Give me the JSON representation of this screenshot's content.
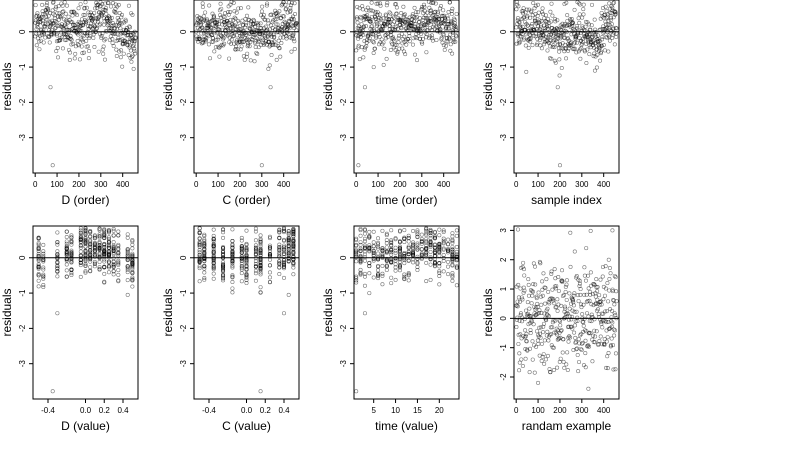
{
  "chart_data": [
    {
      "type": "scatter",
      "title": "",
      "xlabel": "D (order)",
      "ylabel": "residuals",
      "x_ticks": [
        0,
        100,
        200,
        300,
        400
      ],
      "y_ticks": [
        0,
        -1,
        -2,
        -3
      ],
      "xlim": [
        -10,
        470
      ],
      "ylim": [
        -4.0,
        0.9
      ],
      "reference_line": 0,
      "x_kind": "index",
      "n_points": 450,
      "spread": 0.35,
      "trend": [
        [
          0,
          0.1
        ],
        [
          100,
          0.25
        ],
        [
          200,
          0.05
        ],
        [
          260,
          0.2
        ],
        [
          300,
          0.35
        ],
        [
          350,
          0.25
        ],
        [
          400,
          -0.1
        ],
        [
          460,
          -0.35
        ]
      ],
      "outliers": [
        [
          80,
          -3.78
        ],
        [
          70,
          -1.57
        ],
        [
          450,
          -1.05
        ],
        [
          440,
          -0.85
        ]
      ]
    },
    {
      "type": "scatter",
      "title": "",
      "xlabel": "C (order)",
      "ylabel": "residuals",
      "x_ticks": [
        0,
        100,
        200,
        300,
        400
      ],
      "y_ticks": [
        0,
        -1,
        -2,
        -3
      ],
      "xlim": [
        -10,
        470
      ],
      "ylim": [
        -4.0,
        0.9
      ],
      "reference_line": 0,
      "x_kind": "index",
      "n_points": 450,
      "spread": 0.35,
      "trend": [
        [
          0,
          0.15
        ],
        [
          100,
          0.05
        ],
        [
          200,
          0.0
        ],
        [
          300,
          -0.1
        ],
        [
          400,
          0.2
        ],
        [
          460,
          0.25
        ]
      ],
      "outliers": [
        [
          300,
          -3.78
        ],
        [
          340,
          -1.57
        ],
        [
          330,
          -1.05
        ]
      ]
    },
    {
      "type": "scatter",
      "title": "",
      "xlabel": "time (order)",
      "ylabel": "residuals",
      "x_ticks": [
        0,
        100,
        200,
        300,
        400
      ],
      "y_ticks": [
        0,
        -1,
        -2,
        -3
      ],
      "xlim": [
        -10,
        470
      ],
      "ylim": [
        -4.0,
        0.9
      ],
      "reference_line": 0,
      "x_kind": "index",
      "n_points": 450,
      "spread": 0.35,
      "trend": [
        [
          0,
          -0.05
        ],
        [
          50,
          0.2
        ],
        [
          150,
          0.1
        ],
        [
          250,
          0.2
        ],
        [
          350,
          0.3
        ],
        [
          460,
          0.1
        ]
      ],
      "outliers": [
        [
          10,
          -3.78
        ],
        [
          40,
          -1.57
        ],
        [
          80,
          -1.0
        ]
      ]
    },
    {
      "type": "scatter",
      "title": "",
      "xlabel": "sample index",
      "ylabel": "residuals",
      "x_ticks": [
        0,
        100,
        200,
        300,
        400
      ],
      "y_ticks": [
        0,
        -1,
        -2,
        -3
      ],
      "xlim": [
        -10,
        470
      ],
      "ylim": [
        -4.0,
        0.9
      ],
      "reference_line": 0,
      "x_kind": "index",
      "n_points": 450,
      "spread": 0.35,
      "trend": [
        [
          0,
          0.2
        ],
        [
          100,
          0.05
        ],
        [
          200,
          -0.15
        ],
        [
          300,
          0.0
        ],
        [
          370,
          -0.3
        ],
        [
          420,
          0.35
        ],
        [
          460,
          0.4
        ]
      ],
      "outliers": [
        [
          200,
          -3.78
        ],
        [
          190,
          -1.57
        ],
        [
          360,
          -1.1
        ]
      ]
    },
    {
      "type": "scatter",
      "title": "",
      "xlabel": "D (value)",
      "ylabel": "residuals",
      "x_ticks": [
        -0.4,
        0.0,
        0.2,
        0.4
      ],
      "y_ticks": [
        0,
        -1,
        -2,
        -3
      ],
      "xlim": [
        -0.56,
        0.56
      ],
      "ylim": [
        -4.0,
        0.9
      ],
      "reference_line": 0,
      "x_kind": "levels",
      "x_levels": [
        -0.5,
        -0.45,
        -0.3,
        -0.2,
        -0.15,
        -0.05,
        0.0,
        0.05,
        0.1,
        0.15,
        0.2,
        0.25,
        0.3,
        0.35,
        0.45,
        0.5
      ],
      "n_points": 450,
      "spread": 0.35,
      "trend": [
        [
          -0.5,
          -0.1
        ],
        [
          -0.2,
          0.05
        ],
        [
          0.0,
          0.25
        ],
        [
          0.15,
          0.3
        ],
        [
          0.3,
          0.1
        ],
        [
          0.5,
          -0.2
        ]
      ],
      "outliers": [
        [
          -0.35,
          -3.78
        ],
        [
          -0.3,
          -1.57
        ],
        [
          0.45,
          -1.05
        ]
      ]
    },
    {
      "type": "scatter",
      "title": "",
      "xlabel": "C (value)",
      "ylabel": "residuals",
      "x_ticks": [
        -0.4,
        0.0,
        0.2,
        0.4
      ],
      "y_ticks": [
        0,
        -1,
        -2,
        -3
      ],
      "xlim": [
        -0.56,
        0.56
      ],
      "ylim": [
        -4.0,
        0.9
      ],
      "reference_line": 0,
      "x_kind": "levels",
      "x_levels": [
        -0.5,
        -0.45,
        -0.35,
        -0.25,
        -0.15,
        -0.05,
        0.0,
        0.1,
        0.15,
        0.25,
        0.35,
        0.4,
        0.45,
        0.5
      ],
      "n_points": 450,
      "spread": 0.35,
      "trend": [
        [
          -0.5,
          0.2
        ],
        [
          -0.3,
          0.05
        ],
        [
          0.0,
          -0.05
        ],
        [
          0.3,
          0.05
        ],
        [
          0.5,
          0.3
        ]
      ],
      "outliers": [
        [
          0.15,
          -3.78
        ],
        [
          0.4,
          -1.57
        ],
        [
          0.45,
          -1.05
        ]
      ]
    },
    {
      "type": "scatter",
      "title": "",
      "xlabel": "time (value)",
      "ylabel": "residuals",
      "x_ticks": [
        5,
        10,
        15,
        20
      ],
      "y_ticks": [
        0,
        -1,
        -2,
        -3
      ],
      "xlim": [
        0.5,
        24.5
      ],
      "ylim": [
        -4.0,
        0.9
      ],
      "reference_line": 0,
      "x_kind": "levels",
      "x_levels": [
        1,
        2,
        3,
        4,
        5,
        6,
        7,
        8,
        9,
        10,
        11,
        12,
        13,
        14,
        15,
        16,
        17,
        18,
        19,
        20,
        21,
        22,
        23,
        24
      ],
      "n_points": 450,
      "spread": 0.35,
      "trend": [
        [
          1,
          -0.05
        ],
        [
          4,
          0.2
        ],
        [
          8,
          0.1
        ],
        [
          12,
          0.15
        ],
        [
          18,
          0.25
        ],
        [
          24,
          0.05
        ]
      ],
      "outliers": [
        [
          1,
          -3.78
        ],
        [
          3,
          -1.57
        ],
        [
          4,
          -1.0
        ]
      ]
    },
    {
      "type": "scatter",
      "title": "",
      "xlabel": "randam example",
      "ylabel": "residuals",
      "x_ticks": [
        0,
        100,
        200,
        300,
        400
      ],
      "y_ticks": [
        3,
        2,
        1,
        0,
        -1,
        -2
      ],
      "xlim": [
        -10,
        470
      ],
      "ylim": [
        -2.75,
        3.15
      ],
      "reference_line": 0,
      "x_kind": "index",
      "n_points": 450,
      "spread": 0.95,
      "trend": [
        [
          0,
          0.0
        ],
        [
          460,
          0.0
        ]
      ],
      "outliers": [
        [
          440,
          3.0
        ],
        [
          330,
          -2.4
        ],
        [
          100,
          -2.2
        ]
      ]
    }
  ]
}
